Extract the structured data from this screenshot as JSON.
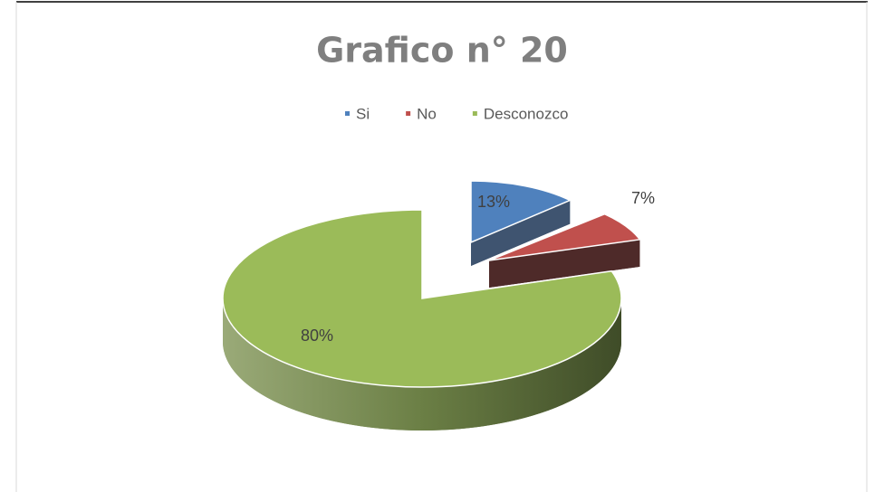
{
  "chart_data": {
    "type": "pie",
    "title": "Grafico n° 20",
    "categories": [
      "Si",
      "No",
      "Desconozco"
    ],
    "values": [
      13,
      7,
      80
    ],
    "value_labels": [
      "13%",
      "7%",
      "80%"
    ],
    "colors": [
      "#4f81bd",
      "#c0504d",
      "#9bbb59"
    ],
    "legend": "top"
  }
}
